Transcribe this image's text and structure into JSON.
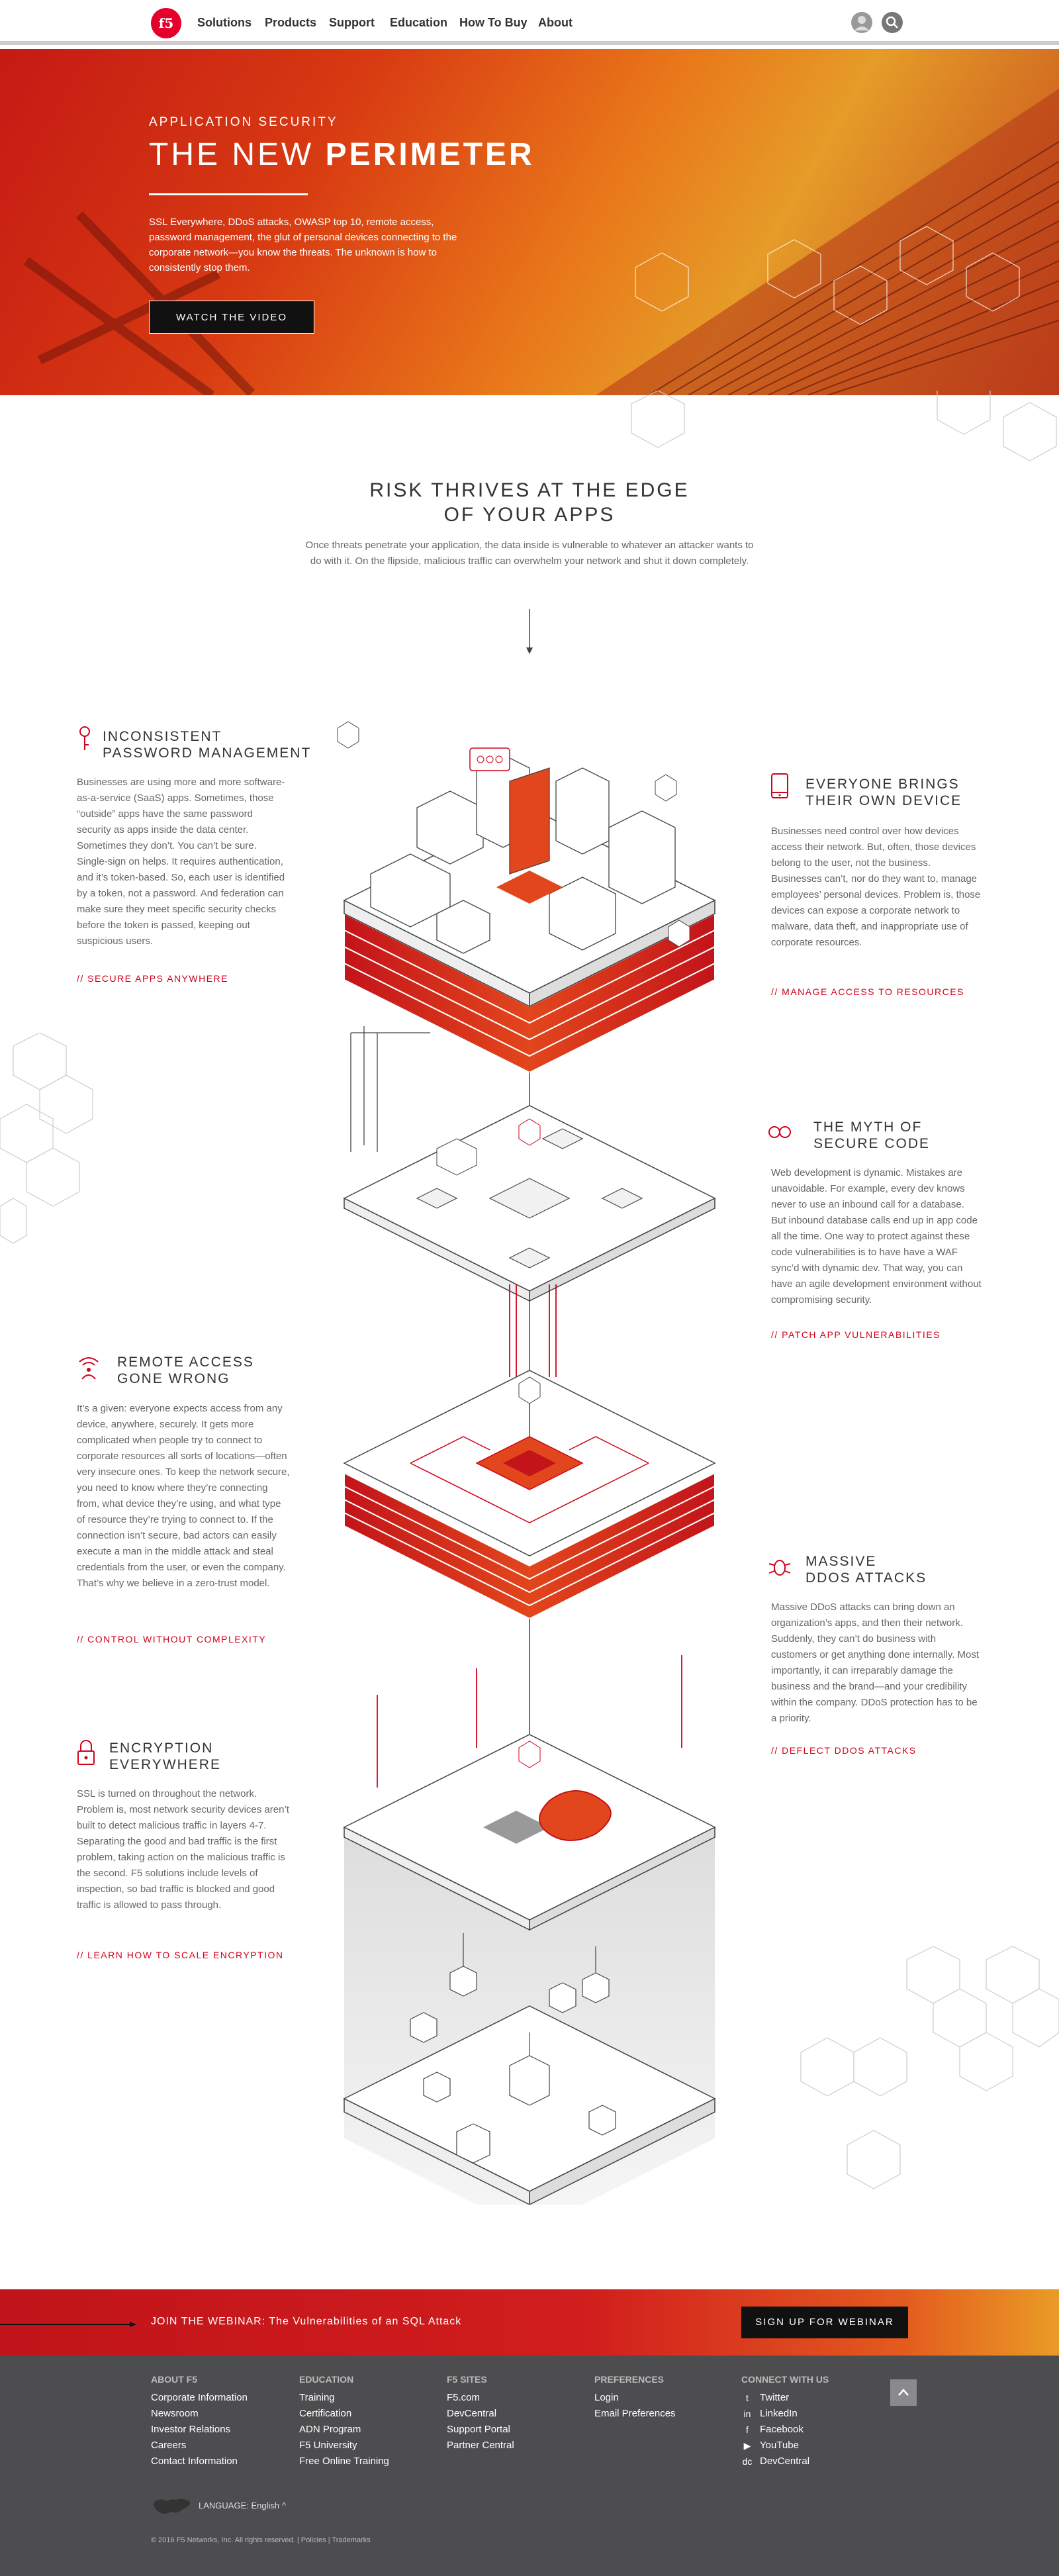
{
  "nav": {
    "logo": "f5",
    "links": [
      "Solutions",
      "Products",
      "Support",
      "Education",
      "How To Buy",
      "About"
    ]
  },
  "hero": {
    "kicker": "APPLICATION SECURITY",
    "title_light": "THE NEW ",
    "title_bold": "PERIMETER",
    "body": "SSL Everywhere, DDoS attacks, OWASP top 10, remote access, password management, the glut of personal devices connecting to the corporate network—you know the threats. The unknown is how to consistently stop them.",
    "button": "WATCH THE VIDEO"
  },
  "intro": {
    "heading_line1": "RISK THRIVES AT THE EDGE",
    "heading_line2": "OF YOUR APPS",
    "body": "Once threats penetrate your application, the data inside is vulnerable to whatever an attacker wants to do with it.  On the flipside, malicious traffic can overwhelm your network and shut it down completely."
  },
  "features": [
    {
      "icon": "key-icon",
      "title1": "INCONSISTENT",
      "title2": "PASSWORD MANAGEMENT",
      "body": "Businesses are using more and more software-as-a-service (SaaS) apps. Sometimes, those “outside” apps have the same password security as apps inside the data center. Sometimes they don’t. You can’t be sure. Single-sign on helps. It requires authentication, and it’s token-based. So, each user is identified by a token, not a password. And federation can make sure they meet specific security checks before the token is passed, keeping out suspicious users.",
      "link": "// SECURE APPS ANYWHERE"
    },
    {
      "icon": "mobile-device-icon",
      "title1": "EVERYONE BRINGS",
      "title2": "THEIR OWN DEVICE",
      "body": "Businesses need control over how devices access their network. But, often, those devices belong to the user, not the business. Businesses can’t, nor do they want to, manage employees’ personal devices. Problem is, those devices can expose a corporate network to malware, data theft, and inappropriate use of corporate resources.",
      "link": "// MANAGE ACCESS TO RESOURCES"
    },
    {
      "icon": "mask-icon",
      "title1": "THE MYTH OF",
      "title2": "SECURE CODE",
      "body": "Web development is dynamic. Mistakes are unavoidable. For example, every dev knows never to use an inbound call for a database. But inbound database calls end up in app code all the time. One way to protect against these code vulnerabilities is to have have a WAF sync’d with dynamic dev. That way, you can have an agile development environment without compromising security.",
      "link": "// PATCH APP VULNERABILITIES"
    },
    {
      "icon": "wifi-user-icon",
      "title1": "REMOTE ACCESS",
      "title2": "GONE WRONG",
      "body": "It’s a given: everyone expects access from any device, anywhere, securely. It gets more complicated when people try to connect to corporate resources all sorts of locations—often very insecure ones. To keep the network secure, you need to know where they’re connecting from, what device they’re using, and what type of resource they’re trying to connect to. If the connection isn’t secure, bad actors can easily execute a man in the middle attack and steal credentials from the user, or even the company. That’s why we believe in a zero-trust model.",
      "link": "// CONTROL WITHOUT COMPLEXITY"
    },
    {
      "icon": "bug-icon",
      "title1": "MASSIVE",
      "title2": "DDOS ATTACKS",
      "body": "Massive DDoS attacks can bring down an organization’s apps, and then their network. Suddenly, they can’t do business with customers or get anything done internally. Most importantly, it can irreparably damage the business and the brand—and your credibility within the company. DDoS protection has to be a priority.",
      "link": "// DEFLECT DDOS ATTACKS"
    },
    {
      "icon": "lock-icon",
      "title1": "ENCRYPTION",
      "title2": "EVERYWHERE",
      "body": "SSL is turned on throughout the network. Problem is, most network security devices aren’t built to detect malicious traffic in layers 4-7. Separating the good and bad traffic is the first problem, taking action on the malicious traffic is the second. F5 solutions include levels of inspection, so bad traffic is blocked and good traffic is allowed to pass through.",
      "link": "// LEARN HOW TO SCALE ENCRYPTION"
    }
  ],
  "cta": {
    "label_bold": "JOIN THE WEBINAR:",
    "label_text": " The Vulnerabilities of an SQL Attack",
    "button": "SIGN UP FOR WEBINAR"
  },
  "footer": {
    "columns": [
      {
        "heading": "ABOUT F5",
        "items": [
          "Corporate Information",
          "Newsroom",
          "Investor Relations",
          "Careers",
          "Contact Information"
        ]
      },
      {
        "heading": "EDUCATION",
        "items": [
          "Training",
          "Certification",
          "ADN Program",
          "F5 University",
          "Free Online Training"
        ]
      },
      {
        "heading": "F5 SITES",
        "items": [
          "F5.com",
          "DevCentral",
          "Support Portal",
          "Partner Central"
        ]
      },
      {
        "heading": "PREFERENCES",
        "items": [
          "Login",
          "Email Preferences"
        ]
      }
    ],
    "connect": {
      "heading": "CONNECT WITH US",
      "items": [
        {
          "icon": "twitter-icon",
          "glyph": "t",
          "label": "Twitter"
        },
        {
          "icon": "linkedin-icon",
          "glyph": "in",
          "label": "LinkedIn"
        },
        {
          "icon": "facebook-icon",
          "glyph": "f",
          "label": "Facebook"
        },
        {
          "icon": "youtube-icon",
          "glyph": "▶",
          "label": "YouTube"
        },
        {
          "icon": "devcentral-icon",
          "glyph": "dc",
          "label": "DevCentral"
        }
      ]
    },
    "language": "LANGUAGE: English ^",
    "copyright": "© 2016 F5 Networks, Inc. All rights reserved.  |  Policies  |  Trademarks"
  },
  "colors": {
    "accent": "#d20019",
    "dark": "#111111",
    "footer": "#4d4d4f"
  }
}
